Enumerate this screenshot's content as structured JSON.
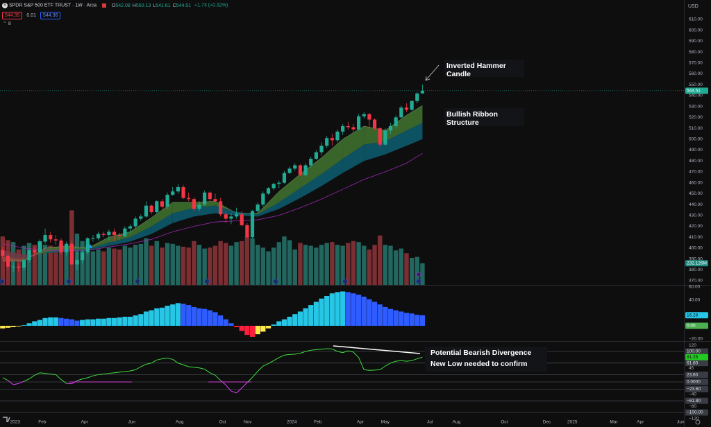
{
  "header": {
    "symbol": "SPDR S&P 500 ETF TRUST · 1W · Arca",
    "ohlc": [
      {
        "key": "O",
        "value": "542.08"
      },
      {
        "key": "H",
        "value": "550.13"
      },
      {
        "key": "L",
        "value": "541.61"
      },
      {
        "key": "C",
        "value": "544.51"
      }
    ],
    "change": "+1.73 (+0.32%)",
    "bid": "544.35",
    "spread": "0.01",
    "ask": "544.36",
    "indicators": "8",
    "currency": "USD"
  },
  "chart_data": [
    {
      "type": "candlestick",
      "xlim": [
        -0.5,
        128.2
      ],
      "ylim": [
        366.2,
        627.8
      ],
      "up_color": "#22ab94",
      "down_color": "#f23645",
      "open": [
        398,
        393,
        383,
        383,
        382,
        389,
        398,
        396,
        406,
        412,
        408,
        407,
        396,
        404,
        385,
        389,
        396,
        409,
        409,
        413,
        412,
        415,
        412,
        411,
        418,
        420,
        427,
        429,
        439,
        433,
        443,
        438,
        449,
        452,
        456,
        446,
        445,
        436,
        440,
        451,
        445,
        443,
        431,
        427,
        429,
        431,
        421,
        410,
        434,
        440,
        450,
        455,
        459,
        460,
        469,
        473,
        476,
        467,
        476,
        482,
        488,
        494,
        501,
        499,
        507,
        512,
        511,
        509,
        521,
        523,
        518,
        510,
        495,
        508,
        512,
        520,
        529,
        527,
        535,
        542.08
      ],
      "high": [
        401,
        396,
        387,
        386,
        391,
        400,
        401,
        408,
        418,
        415,
        412,
        409,
        406,
        407,
        396,
        398,
        410,
        412,
        415,
        415,
        417,
        418,
        414,
        420,
        422,
        429,
        431,
        443,
        440,
        444,
        445,
        451,
        456,
        459,
        458,
        451,
        447,
        443,
        453,
        452,
        450,
        446,
        433,
        432,
        437,
        434,
        423,
        435,
        442,
        452,
        456,
        460,
        462,
        471,
        475,
        478,
        477,
        478,
        484,
        490,
        497,
        503,
        505,
        509,
        514,
        516,
        514,
        523,
        525,
        524,
        519,
        511,
        510,
        515,
        522,
        531,
        533,
        536,
        543,
        550.13
      ],
      "low": [
        390,
        380,
        378,
        378,
        379,
        387,
        393,
        394,
        404,
        405,
        403,
        394,
        393,
        384,
        380,
        386,
        394,
        406,
        407,
        410,
        407,
        406,
        408,
        410,
        413,
        418,
        425,
        428,
        431,
        432,
        436,
        436,
        448,
        450,
        445,
        443,
        434,
        434,
        439,
        443,
        442,
        429,
        423,
        422,
        427,
        420,
        409,
        409,
        432,
        438,
        449,
        453,
        455,
        459,
        468,
        471,
        466,
        466,
        474,
        481,
        485,
        492,
        494,
        497,
        504,
        509,
        506,
        508,
        519,
        510,
        508,
        493,
        494,
        505,
        510,
        519,
        525,
        526,
        533,
        541.61
      ],
      "close": [
        393,
        383,
        383,
        382,
        389,
        398,
        396,
        406,
        412,
        408,
        407,
        396,
        404,
        385,
        389,
        396,
        409,
        409,
        413,
        412,
        415,
        412,
        411,
        418,
        420,
        427,
        429,
        439,
        433,
        443,
        438,
        449,
        452,
        456,
        446,
        445,
        436,
        440,
        451,
        445,
        443,
        431,
        427,
        429,
        431,
        421,
        410,
        434,
        440,
        450,
        455,
        459,
        460,
        469,
        473,
        476,
        467,
        476,
        482,
        488,
        494,
        501,
        499,
        507,
        512,
        511,
        509,
        521,
        523,
        518,
        510,
        495,
        508,
        512,
        520,
        529,
        527,
        535,
        542,
        544.51
      ],
      "yticks": [
        {
          "value": 370,
          "label": "370.00"
        },
        {
          "value": 380,
          "label": "380.00"
        },
        {
          "value": 390,
          "label": "390.00"
        },
        {
          "value": 400,
          "label": "400.00"
        },
        {
          "value": 410,
          "label": "410.00"
        },
        {
          "value": 420,
          "label": "420.00"
        },
        {
          "value": 430,
          "label": "430.00"
        },
        {
          "value": 440,
          "label": "440.00"
        },
        {
          "value": 450,
          "label": "450.00"
        },
        {
          "value": 460,
          "label": "460.00"
        },
        {
          "value": 470,
          "label": "470.00"
        },
        {
          "value": 480,
          "label": "480.00"
        },
        {
          "value": 490,
          "label": "490.00"
        },
        {
          "value": 500,
          "label": "500.00"
        },
        {
          "value": 510,
          "label": "510.00"
        },
        {
          "value": 520,
          "label": "520.00"
        },
        {
          "value": 530,
          "label": "530.00"
        },
        {
          "value": 540,
          "label": "540.00"
        },
        {
          "value": 550,
          "label": "550.00"
        },
        {
          "value": 560,
          "label": "560.00"
        },
        {
          "value": 570,
          "label": "570.00"
        },
        {
          "value": 580,
          "label": "580.00"
        },
        {
          "value": 590,
          "label": "590.00"
        },
        {
          "value": 600,
          "label": "600.00"
        },
        {
          "value": 610,
          "label": "610.00"
        }
      ],
      "ribbon": {
        "x": [
          0,
          4,
          8,
          12,
          16,
          20,
          24,
          28,
          32,
          36,
          40,
          44,
          48,
          52,
          56,
          60,
          64,
          68,
          72,
          76,
          79
        ],
        "fast": [
          388,
          388,
          400,
          402,
          400,
          410,
          415,
          428,
          442,
          442,
          443,
          432,
          432,
          452,
          468,
          483,
          500,
          512,
          508,
          522,
          531
        ],
        "mid": [
          392,
          390,
          396,
          399,
          399,
          405,
          410,
          420,
          432,
          437,
          439,
          433,
          431,
          442,
          455,
          468,
          482,
          495,
          498,
          508,
          515
        ],
        "base": [
          398,
          394,
          395,
          397,
          398,
          402,
          406,
          413,
          423,
          429,
          432,
          430,
          429,
          436,
          446,
          457,
          469,
          480,
          486,
          494,
          500
        ],
        "slow": [
          404,
          400,
          398,
          398,
          398,
          401,
          404,
          408,
          415,
          420,
          424,
          425,
          426,
          430,
          437,
          445,
          454,
          463,
          470,
          478,
          487
        ],
        "bull_fast_color": "#3f6f2e",
        "bull_base_color": "#0d5a6c",
        "bear_fast_color": "#8a4b3a",
        "bear_base_color": "#6e3a44",
        "slow_color": "#9c27b0"
      },
      "annotations": [
        "Inverted Hammer Candle",
        "Bullish Ribbon Structure"
      ]
    },
    {
      "type": "bar",
      "xlim": [
        -0.5,
        128.2
      ],
      "ylim": [
        0,
        3056
      ],
      "up_color": "#22675f",
      "down_color": "#7c2f33",
      "label_color": "#1f8a80",
      "values": [
        520,
        480,
        460,
        380,
        420,
        450,
        430,
        470,
        430,
        420,
        410,
        440,
        400,
        800,
        550,
        470,
        430,
        360,
        380,
        360,
        400,
        390,
        380,
        420,
        400,
        430,
        440,
        500,
        420,
        470,
        400,
        450,
        440,
        420,
        410,
        400,
        470,
        430,
        390,
        400,
        420,
        470,
        450,
        420,
        460,
        470,
        520,
        500,
        430,
        400,
        360,
        400,
        460,
        520,
        480,
        380,
        450,
        430,
        420,
        400,
        430,
        450,
        460,
        430,
        420,
        450,
        470,
        460,
        420,
        380,
        430,
        530,
        430,
        420,
        370,
        390,
        340,
        290,
        300,
        232.126
      ],
      "value_labels": [
        null,
        null,
        null,
        null,
        null,
        null,
        null,
        null,
        null,
        null,
        null,
        null,
        null,
        null,
        null,
        null,
        null,
        null,
        null,
        null,
        null,
        null,
        null,
        null,
        null,
        null,
        null,
        null,
        null,
        null,
        null,
        null,
        null,
        null,
        null,
        null,
        null,
        null,
        null,
        null,
        null,
        null,
        null,
        null,
        null,
        null,
        null,
        null,
        null,
        null,
        null,
        null,
        null,
        null,
        null,
        null,
        null,
        null,
        null,
        null,
        null,
        null,
        null,
        null,
        null,
        null,
        null,
        null,
        null,
        null,
        null,
        null,
        null,
        null,
        null,
        null,
        null,
        null,
        null,
        "232.126M"
      ]
    },
    {
      "type": "histogram-bar",
      "xlim": [
        -0.5,
        128.2
      ],
      "ylim": [
        -23.5,
        63.1
      ],
      "rise_pos_color": "#26c6e6",
      "fall_pos_color": "#2f5cff",
      "fall_neg_color": "#ff1f3d",
      "rise_neg_color": "#ffe94d",
      "values": [
        -4,
        -3,
        -2,
        -1,
        1,
        4,
        7,
        9,
        12,
        13,
        13,
        12,
        11,
        10,
        8,
        9,
        10,
        10,
        11,
        11,
        12,
        12,
        13,
        14,
        14,
        16,
        18,
        22,
        24,
        27,
        28,
        31,
        33,
        35,
        34,
        32,
        29,
        27,
        26,
        24,
        21,
        16,
        10,
        4,
        -2,
        -8,
        -14,
        -17,
        -13,
        -9,
        -4,
        2,
        7,
        10,
        14,
        18,
        22,
        27,
        32,
        37,
        42,
        46,
        50,
        52,
        53,
        52,
        50,
        48,
        45,
        41,
        37,
        33,
        29,
        26,
        24,
        22,
        20,
        19,
        17,
        16.28
      ],
      "yticks": [
        {
          "value": 60,
          "label": "60.00"
        },
        {
          "value": 40,
          "label": "40.00"
        },
        {
          "value": 0,
          "label": "0.00"
        },
        {
          "value": -20,
          "label": "−20.00"
        }
      ]
    },
    {
      "type": "line",
      "xlim": [
        -0.5,
        128.2
      ],
      "ylim": [
        -147.7,
        131.8
      ],
      "color": "#3ee03e",
      "negative_color": "#e040fb",
      "values": [
        14,
        5,
        -9,
        -5,
        2,
        10,
        22,
        30,
        28,
        26,
        24,
        8,
        -5,
        -6,
        4,
        10,
        14,
        20,
        24,
        26,
        28,
        30,
        32,
        34,
        36,
        40,
        50,
        58,
        62,
        72,
        76,
        78,
        74,
        62,
        56,
        50,
        48,
        46,
        42,
        30,
        22,
        5,
        -10,
        -30,
        -36,
        -20,
        -2,
        15,
        35,
        52,
        60,
        70,
        80,
        88,
        90,
        91,
        94,
        100,
        104,
        106,
        107,
        109,
        108,
        100,
        96,
        102,
        98,
        80,
        40,
        38,
        39,
        40,
        52,
        62,
        68,
        70,
        68,
        70,
        76,
        81.25
      ],
      "levels": [
        {
          "value": 100,
          "label": "100.00"
        },
        {
          "value": 61.8,
          "label": "61.80"
        },
        {
          "value": 23.6,
          "label": "23.60"
        },
        {
          "value": 0,
          "label": "0.0000"
        },
        {
          "value": -23.6,
          "label": "−23.60"
        },
        {
          "value": -61.8,
          "label": "−61.80"
        },
        {
          "value": -100,
          "label": "−100.00"
        }
      ],
      "yticks": [
        120,
        45,
        {
          "value": -40,
          "label": "−40"
        },
        {
          "value": -80,
          "label": "−80"
        },
        {
          "value": -120,
          "label": "−120"
        }
      ],
      "xticks": [
        {
          "value": 2.35,
          "label": "2023"
        },
        {
          "value": 7.45,
          "label": "Feb"
        },
        {
          "value": 15.4,
          "label": "Apr"
        },
        {
          "value": 24.3,
          "label": "Jun"
        },
        {
          "value": 33.3,
          "label": "Aug"
        },
        {
          "value": 41.4,
          "label": "Oct"
        },
        {
          "value": 46.1,
          "label": "Nov"
        },
        {
          "value": 54.4,
          "label": "2024"
        },
        {
          "value": 59.3,
          "label": "Feb"
        },
        {
          "value": 67.3,
          "label": "Apr"
        },
        {
          "value": 72.0,
          "label": "May"
        },
        {
          "value": 80.4,
          "label": "Jul"
        },
        {
          "value": 85.4,
          "label": "Aug"
        },
        {
          "value": 94.4,
          "label": "Oct"
        },
        {
          "value": 102.4,
          "label": "Dec"
        },
        {
          "value": 107.2,
          "label": "2025"
        },
        {
          "value": 115.0,
          "label": "Mar"
        },
        {
          "value": 120.0,
          "label": "Apr"
        },
        {
          "value": 127.6,
          "label": "Jun"
        }
      ],
      "annotations": [
        "Potential Bearish Divergence",
        "New Low needed to confirm"
      ]
    }
  ]
}
